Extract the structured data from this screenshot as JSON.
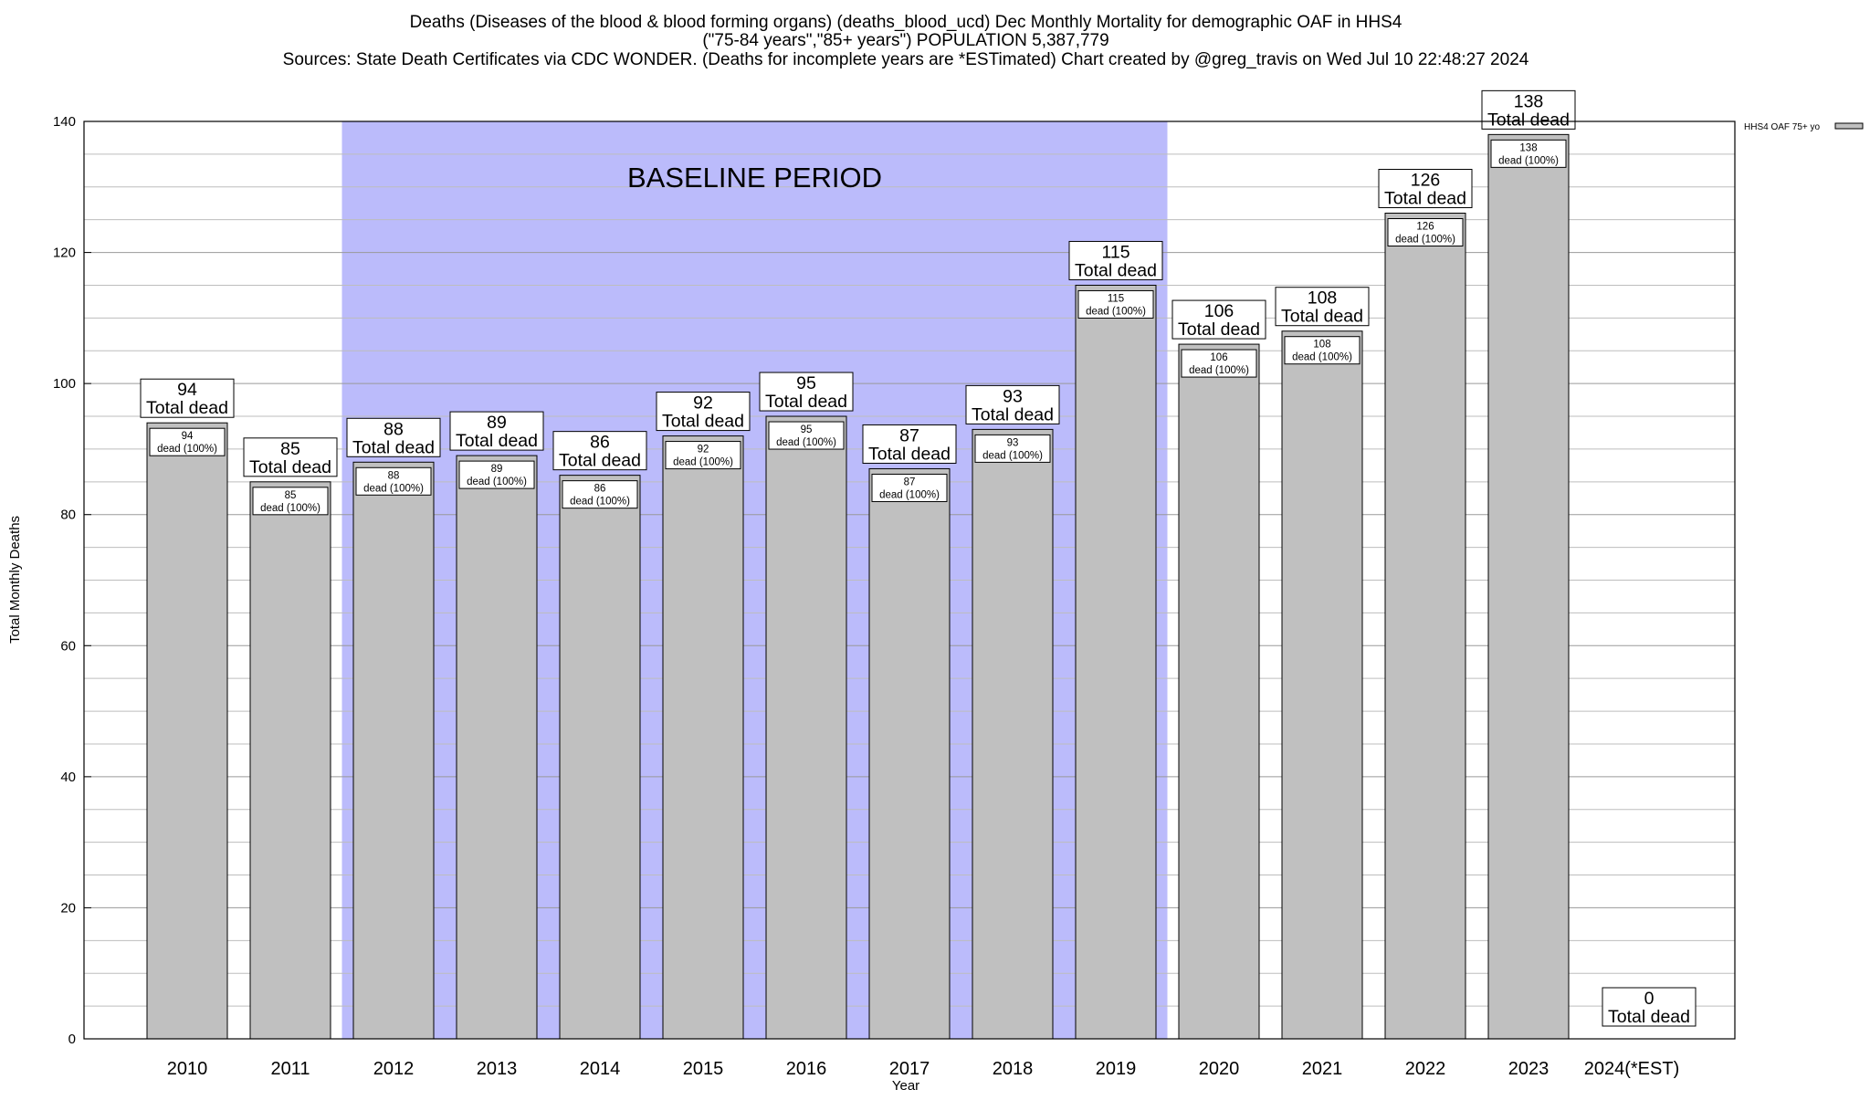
{
  "chart_data": {
    "type": "bar",
    "title_lines": [
      "Deaths (Diseases of the blood & blood forming organs) (deaths_blood_ucd) Dec Monthly Mortality for demographic OAF in HHS4",
      "(\"75-84 years\",\"85+ years\") POPULATION 5,387,779",
      "Sources: State Death Certificates via CDC WONDER. (Deaths for incomplete years are *ESTimated)                Chart created by @greg_travis on Wed Jul 10 22:48:27 2024"
    ],
    "xlabel": "Year",
    "ylabel": "Total Monthly Deaths",
    "ylim": [
      0,
      140
    ],
    "yticks": [
      0,
      20,
      40,
      60,
      80,
      100,
      120,
      140
    ],
    "categories": [
      "2010",
      "2011",
      "2012",
      "2013",
      "2014",
      "2015",
      "2016",
      "2017",
      "2018",
      "2019",
      "2020",
      "2021",
      "2022",
      "2023",
      "2024(*EST)"
    ],
    "series": [
      {
        "name": "HHS4 OAF 75+ yo",
        "values": [
          94,
          85,
          88,
          89,
          86,
          92,
          95,
          87,
          93,
          115,
          106,
          108,
          126,
          138,
          0
        ]
      }
    ],
    "total_label_suffix": "Total dead",
    "inner_label_suffix": "dead (100%)",
    "baseline": {
      "label": "BASELINE PERIOD",
      "from": "2012",
      "to": "2019"
    },
    "grid": true,
    "legend_position": "top-right",
    "colors": {
      "bar": "#c0c0c0",
      "baseline": "#bbbbfb"
    }
  }
}
